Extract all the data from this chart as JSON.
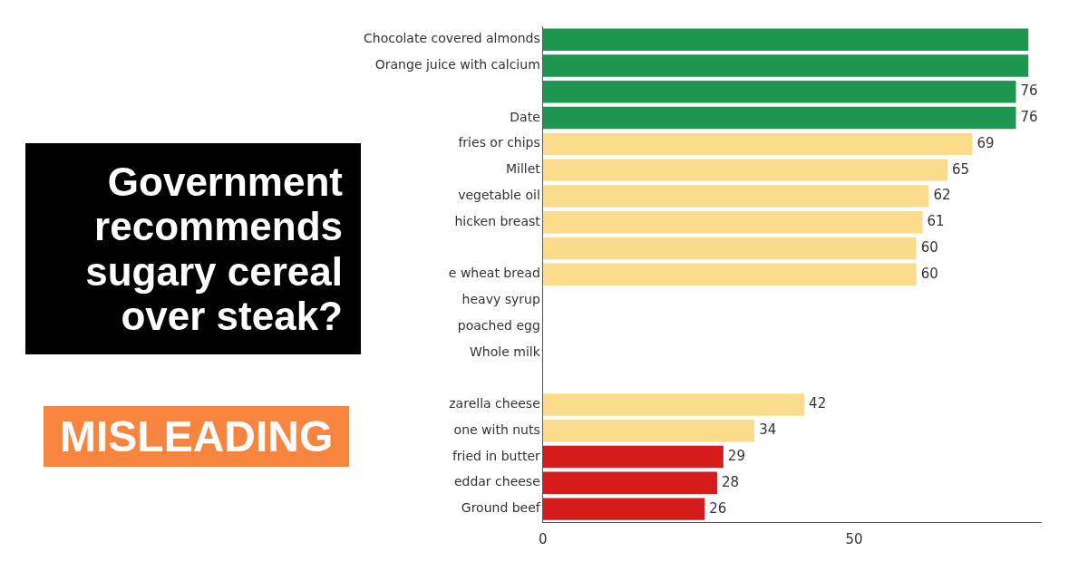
{
  "chart_data": {
    "type": "bar",
    "orientation": "horizontal",
    "title": "Government recommends sugary cereal over steak?",
    "annotations": [
      "MISLEADING"
    ],
    "categories": [
      "Chocolate covered almonds",
      "Orange juice with calcium",
      null,
      "Date",
      "fries or chips",
      "Millet",
      "vegetable oil",
      "hicken breast",
      null,
      "e wheat bread",
      "heavy syrup",
      "poached egg",
      "Whole milk",
      null,
      "zarella cheese",
      "one with nuts",
      "fried in butter",
      "eddar cheese",
      "Ground beef"
    ],
    "values": [
      78,
      78,
      76,
      76,
      69,
      65,
      62,
      61,
      60,
      60,
      null,
      null,
      null,
      null,
      42,
      34,
      29,
      28,
      26
    ],
    "colors": [
      "#1e9650",
      "#1e9650",
      "#1e9650",
      "#1e9650",
      "#fadc8c",
      "#fadc8c",
      "#fadc8c",
      "#fadc8c",
      "#fadc8c",
      "#fadc8c",
      "#fadc8c",
      "#fadc8c",
      "#fadc8c",
      "#fadc8c",
      "#fadc8c",
      "#fadc8c",
      "#d41c1c",
      "#d41c1c",
      "#d41c1c"
    ],
    "value_labels": [
      null,
      null,
      "76",
      "76",
      "69",
      "65",
      "62",
      "61",
      "60",
      "60",
      null,
      null,
      null,
      null,
      "42",
      "34",
      "29",
      "28",
      "26"
    ],
    "xlim": [
      0,
      80
    ],
    "xticks": [
      0,
      50
    ],
    "grid": false,
    "legend": false
  }
}
